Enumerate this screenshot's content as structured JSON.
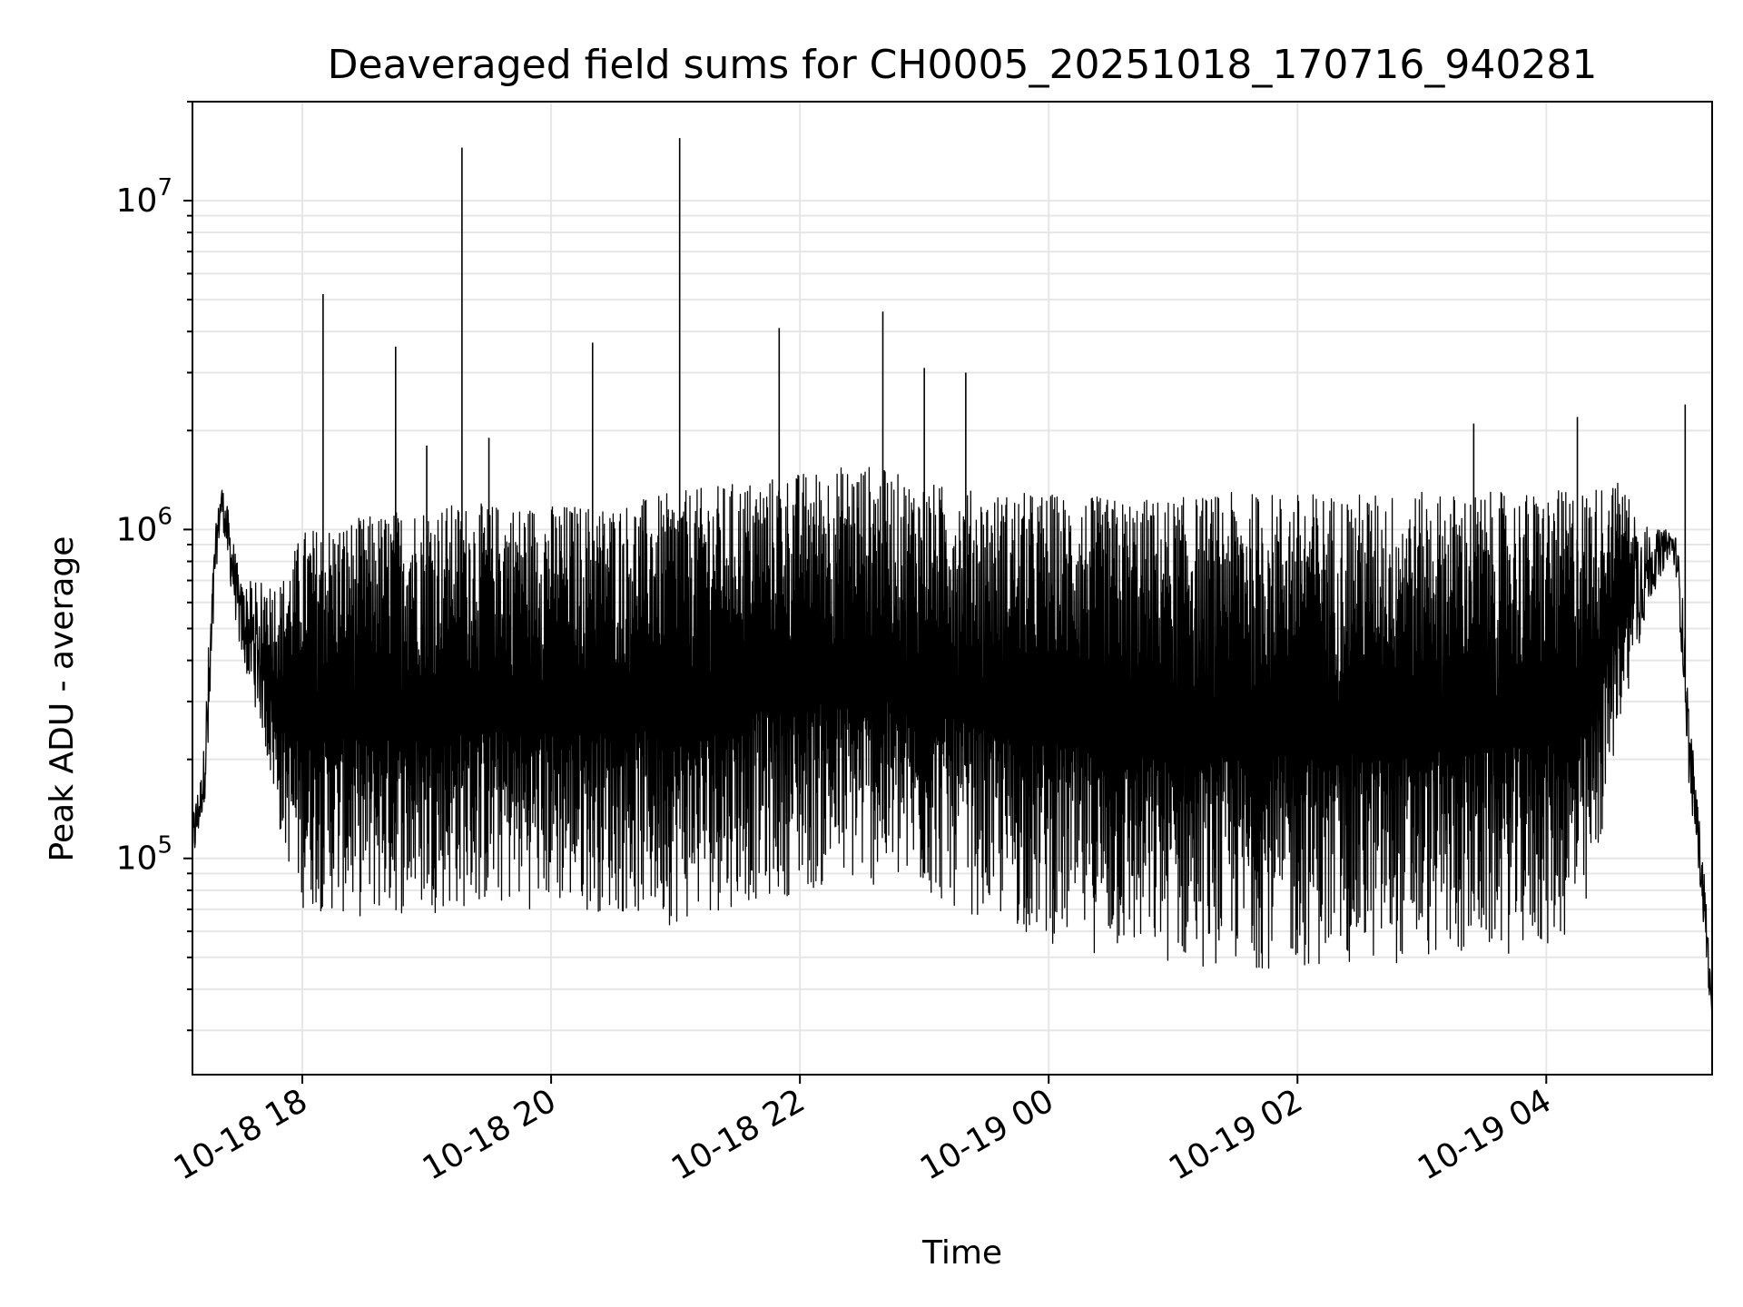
{
  "chart_data": {
    "type": "line",
    "title": "Deaveraged field sums for CH0005_20251018_170716_940281",
    "xlabel": "Time",
    "ylabel": "Peak ADU - average",
    "x_scale": "time",
    "y_scale": "log",
    "xlim": [
      "2025-10-18 17:07",
      "2025-10-19 05:20"
    ],
    "ylim": [
      22000,
      20000000
    ],
    "x_ticks": [
      {
        "value": "2025-10-18 18:00",
        "label": "10-18 18"
      },
      {
        "value": "2025-10-18 20:00",
        "label": "10-18 20"
      },
      {
        "value": "2025-10-18 22:00",
        "label": "10-18 22"
      },
      {
        "value": "2025-10-19 00:00",
        "label": "10-19 00"
      },
      {
        "value": "2025-10-19 02:00",
        "label": "10-19 02"
      },
      {
        "value": "2025-10-19 04:00",
        "label": "10-19 04"
      }
    ],
    "y_ticks": [
      {
        "value": 100000,
        "base": "10",
        "exp": "5"
      },
      {
        "value": 1000000,
        "base": "10",
        "exp": "6"
      },
      {
        "value": 10000000,
        "base": "10",
        "exp": "7"
      }
    ],
    "grid": true,
    "line_color": "#000000",
    "grid_color": "#e6e6e6",
    "envelope": [
      [
        "2025-10-18 17:07",
        90000,
        140000
      ],
      [
        "2025-10-18 17:12",
        140000,
        190000
      ],
      [
        "2025-10-18 17:15",
        180000,
        500000
      ],
      [
        "2025-10-18 17:18",
        700000,
        1000000
      ],
      [
        "2025-10-18 17:21",
        1100000,
        1400000
      ],
      [
        "2025-10-18 17:25",
        700000,
        1100000
      ],
      [
        "2025-10-18 17:30",
        420000,
        700000
      ],
      [
        "2025-10-18 17:40",
        250000,
        700000
      ],
      [
        "2025-10-18 17:50",
        110000,
        700000
      ],
      [
        "2025-10-18 18:00",
        70000,
        1000000
      ],
      [
        "2025-10-18 18:30",
        65000,
        1100000
      ],
      [
        "2025-10-18 19:00",
        68000,
        1200000
      ],
      [
        "2025-10-18 19:30",
        70000,
        1200000
      ],
      [
        "2025-10-18 20:00",
        70000,
        1200000
      ],
      [
        "2025-10-18 20:30",
        68000,
        1200000
      ],
      [
        "2025-10-18 21:00",
        62000,
        1300000
      ],
      [
        "2025-10-18 21:30",
        72000,
        1400000
      ],
      [
        "2025-10-18 22:00",
        78000,
        1500000
      ],
      [
        "2025-10-18 22:30",
        82000,
        1600000
      ],
      [
        "2025-10-18 23:00",
        75000,
        1400000
      ],
      [
        "2025-10-18 23:30",
        65000,
        1300000
      ],
      [
        "2025-10-19 00:00",
        55000,
        1300000
      ],
      [
        "2025-10-19 00:30",
        50000,
        1250000
      ],
      [
        "2025-10-19 01:00",
        47000,
        1250000
      ],
      [
        "2025-10-19 01:30",
        46000,
        1300000
      ],
      [
        "2025-10-19 02:00",
        46000,
        1300000
      ],
      [
        "2025-10-19 02:30",
        47000,
        1300000
      ],
      [
        "2025-10-19 03:00",
        48000,
        1300000
      ],
      [
        "2025-10-19 03:30",
        50000,
        1300000
      ],
      [
        "2025-10-19 04:00",
        52000,
        1300000
      ],
      [
        "2025-10-19 04:20",
        60000,
        1350000
      ],
      [
        "2025-10-19 04:35",
        250000,
        1400000
      ],
      [
        "2025-10-19 04:50",
        600000,
        1000000
      ],
      [
        "2025-10-19 05:00",
        850000,
        1000000
      ],
      [
        "2025-10-19 05:03",
        700000,
        950000
      ],
      [
        "2025-10-19 05:06",
        350000,
        600000
      ],
      [
        "2025-10-19 05:09",
        160000,
        280000
      ],
      [
        "2025-10-19 05:13",
        100000,
        150000
      ],
      [
        "2025-10-19 05:17",
        50000,
        80000
      ],
      [
        "2025-10-19 05:20",
        30000,
        35000
      ]
    ],
    "spikes": [
      [
        "2025-10-18 18:10",
        5200000
      ],
      [
        "2025-10-18 18:45",
        3600000
      ],
      [
        "2025-10-18 19:00",
        1800000
      ],
      [
        "2025-10-18 19:17",
        14500000
      ],
      [
        "2025-10-18 19:30",
        1900000
      ],
      [
        "2025-10-18 20:20",
        3700000
      ],
      [
        "2025-10-18 21:02",
        15500000
      ],
      [
        "2025-10-18 21:50",
        4100000
      ],
      [
        "2025-10-18 22:40",
        4600000
      ],
      [
        "2025-10-18 23:00",
        3100000
      ],
      [
        "2025-10-18 23:20",
        3000000
      ],
      [
        "2025-10-19 03:25",
        2100000
      ],
      [
        "2025-10-19 04:15",
        2200000
      ],
      [
        "2025-10-19 05:07",
        2400000
      ]
    ]
  }
}
